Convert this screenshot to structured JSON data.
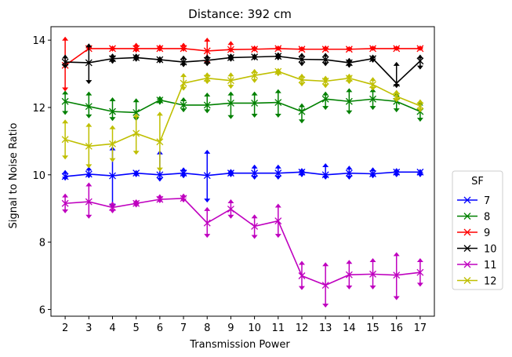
{
  "chart_data": {
    "type": "line",
    "title": "Distance: 392 cm",
    "xlabel": "Transmission Power",
    "ylabel": "Signal to Noise Ratio",
    "x": [
      2,
      3,
      4,
      5,
      6,
      7,
      8,
      9,
      10,
      11,
      12,
      13,
      14,
      15,
      16,
      17
    ],
    "xlim": [
      1.4,
      17.6
    ],
    "ylim": [
      5.8,
      14.4
    ],
    "yticks": [
      6,
      8,
      10,
      12,
      14
    ],
    "grid": false,
    "legend": {
      "title": "SF",
      "placement": "right"
    },
    "series": [
      {
        "name": "7",
        "color": "#0000ff",
        "values": [
          9.95,
          10.02,
          9.97,
          10.05,
          10.0,
          10.05,
          9.98,
          10.05,
          10.05,
          10.05,
          10.08,
          10.0,
          10.05,
          10.03,
          10.08,
          10.08
        ],
        "err_high": [
          10.12,
          10.22,
          10.82,
          10.12,
          10.7,
          10.2,
          10.72,
          10.15,
          10.28,
          10.28,
          10.18,
          10.32,
          10.25,
          10.2,
          10.18,
          10.15
        ],
        "err_low": [
          9.85,
          9.92,
          9.05,
          9.95,
          9.82,
          9.92,
          9.2,
          9.95,
          9.88,
          9.88,
          9.95,
          9.88,
          9.88,
          9.92,
          9.95,
          9.95
        ]
      },
      {
        "name": "8",
        "color": "#008000",
        "values": [
          12.18,
          12.03,
          11.88,
          11.85,
          12.22,
          12.07,
          12.07,
          12.13,
          12.13,
          12.15,
          11.88,
          12.25,
          12.18,
          12.25,
          12.18,
          11.88
        ],
        "err_high": [
          12.48,
          12.45,
          12.28,
          12.25,
          12.32,
          12.28,
          12.42,
          12.45,
          12.45,
          12.52,
          12.1,
          12.45,
          12.55,
          12.55,
          12.42,
          12.15
        ],
        "err_low": [
          11.8,
          11.7,
          11.62,
          11.62,
          12.1,
          11.88,
          11.85,
          11.68,
          11.72,
          11.72,
          11.55,
          11.95,
          11.82,
          11.95,
          11.88,
          11.6
        ]
      },
      {
        "name": "9",
        "color": "#ff0000",
        "values": [
          13.25,
          13.75,
          13.75,
          13.75,
          13.75,
          13.75,
          13.68,
          13.72,
          13.73,
          13.75,
          13.73,
          13.73,
          13.73,
          13.75,
          13.75,
          13.75
        ],
        "err_high": [
          14.08,
          13.85,
          13.82,
          13.9,
          13.85,
          13.9,
          14.05,
          13.95,
          13.82,
          13.82,
          13.8,
          13.82,
          13.8,
          13.82,
          13.82,
          13.82
        ],
        "err_low": [
          12.5,
          13.7,
          13.68,
          13.65,
          13.68,
          13.68,
          13.28,
          13.65,
          13.68,
          13.7,
          13.68,
          13.68,
          13.68,
          13.7,
          13.7,
          13.7
        ]
      },
      {
        "name": "10",
        "color": "#000000",
        "values": [
          13.35,
          13.33,
          13.45,
          13.48,
          13.42,
          13.35,
          13.4,
          13.48,
          13.5,
          13.52,
          13.43,
          13.42,
          13.33,
          13.45,
          12.72,
          13.38
        ],
        "err_high": [
          13.55,
          13.88,
          13.58,
          13.58,
          13.5,
          13.52,
          13.55,
          13.58,
          13.58,
          13.62,
          13.6,
          13.6,
          13.45,
          13.55,
          13.33,
          13.55
        ],
        "err_low": [
          13.18,
          12.72,
          13.32,
          13.38,
          13.33,
          13.22,
          13.25,
          13.38,
          13.42,
          13.42,
          13.25,
          13.25,
          13.2,
          13.35,
          12.6,
          13.15
        ]
      },
      {
        "name": "11",
        "color": "#bf00bf",
        "values": [
          9.15,
          9.2,
          9.03,
          9.15,
          9.27,
          9.3,
          8.57,
          8.98,
          8.47,
          8.63,
          7.0,
          6.72,
          7.03,
          7.05,
          7.02,
          7.1
        ],
        "err_high": [
          9.42,
          9.75,
          9.18,
          9.25,
          9.4,
          9.42,
          9.02,
          9.25,
          8.8,
          9.12,
          7.42,
          7.38,
          7.45,
          7.5,
          7.68,
          7.5
        ],
        "err_low": [
          8.88,
          8.72,
          8.88,
          9.05,
          9.18,
          9.2,
          8.15,
          8.72,
          8.12,
          8.15,
          6.6,
          6.08,
          6.62,
          6.62,
          6.3,
          6.7
        ]
      },
      {
        "name": "12",
        "color": "#bfbf00",
        "values": [
          11.05,
          10.85,
          10.92,
          11.23,
          10.98,
          12.72,
          12.87,
          12.8,
          12.95,
          13.07,
          12.82,
          12.78,
          12.87,
          12.68,
          12.33,
          12.05
        ],
        "err_high": [
          11.62,
          11.52,
          11.45,
          11.8,
          11.85,
          13.0,
          13.02,
          13.02,
          13.12,
          13.15,
          12.98,
          12.92,
          12.98,
          12.88,
          12.5,
          12.22
        ],
        "err_low": [
          10.48,
          10.22,
          10.4,
          10.62,
          10.12,
          12.52,
          12.72,
          12.58,
          12.75,
          12.95,
          12.65,
          12.6,
          12.72,
          12.52,
          12.18,
          11.88
        ]
      }
    ]
  }
}
